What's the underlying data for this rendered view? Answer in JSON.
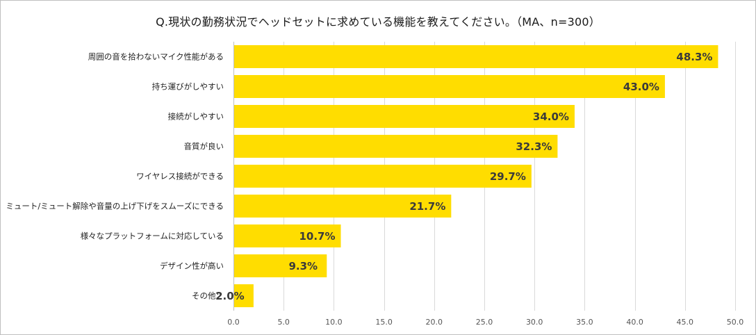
{
  "chart_data": {
    "type": "bar",
    "orientation": "horizontal",
    "title": "Q.現状の勤務状況でヘッドセットに求めている機能を教えてください。（MA、n=300）",
    "categories": [
      "周囲の音を拾わないマイク性能がある",
      "持ち運びがしやすい",
      "接続がしやすい",
      "音質が良い",
      "ワイヤレス接続ができる",
      "ミュート/ミュート解除や音量の上げ下げをスムーズにできる",
      "様々なプラットフォームに対応している",
      "デザイン性が高い",
      "その他："
    ],
    "values": [
      48.3,
      43.0,
      34.0,
      32.3,
      29.7,
      21.7,
      10.7,
      9.3,
      2.0
    ],
    "data_labels": [
      "48.3%",
      "43.0%",
      "34.0%",
      "32.3%",
      "29.7%",
      "21.7%",
      "10.7%",
      "9.3%",
      "2.0%"
    ],
    "xlim": [
      0,
      50
    ],
    "xticks": [
      "0.0",
      "5.0",
      "10.0",
      "15.0",
      "20.0",
      "25.0",
      "30.0",
      "35.0",
      "40.0",
      "45.0",
      "50.0"
    ],
    "xtick_values": [
      0,
      5,
      10,
      15,
      20,
      25,
      30,
      35,
      40,
      45,
      50
    ],
    "grid": true,
    "bar_color": "#FFDD00",
    "label_color": "#3a3a3a"
  }
}
